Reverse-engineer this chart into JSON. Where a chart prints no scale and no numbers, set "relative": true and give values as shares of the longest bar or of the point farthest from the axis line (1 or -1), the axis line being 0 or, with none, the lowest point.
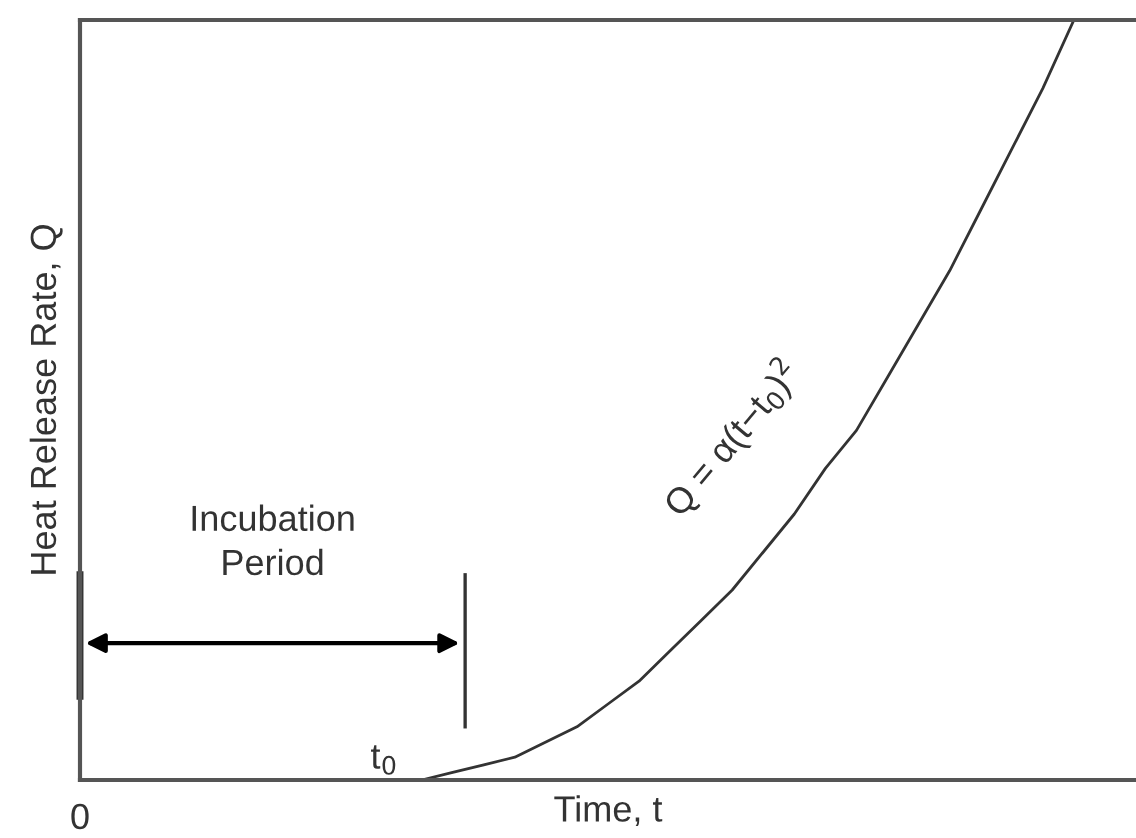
{
  "chart_data": {
    "type": "line",
    "relative": true,
    "xlabel": "Time, t",
    "ylabel": "Heat Release Rate, Q",
    "categories": [
      null,
      null,
      null,
      null,
      null,
      null,
      null,
      null,
      null,
      null,
      null,
      null,
      null,
      null,
      null,
      null,
      null,
      null,
      null,
      null,
      null,
      null,
      null,
      null,
      null,
      null,
      null,
      null,
      null,
      null,
      null,
      null,
      null,
      null,
      null
    ],
    "series": [
      {
        "color": "#333333",
        "values": [
          null,
          null,
          null,
          null,
          null,
          null,
          null,
          null,
          null,
          null,
          0,
          0,
          0.01,
          0.02,
          0.03,
          0.05,
          0.07,
          0.1,
          0.13,
          0.17,
          0.21,
          0.25,
          0.3,
          0.35,
          0.41,
          0.46,
          0.53,
          0.6,
          0.67,
          0.75,
          0.83,
          0.91,
          1,
          null,
          null
        ]
      }
    ],
    "annotations": [
      "Incubation Period",
      "t$_{0}$",
      "Q = α(t−t$_{0}$)$^{2}$",
      "0"
    ],
    "grid": false,
    "legend": false,
    "marker": "none",
    "line_style": "solid"
  }
}
